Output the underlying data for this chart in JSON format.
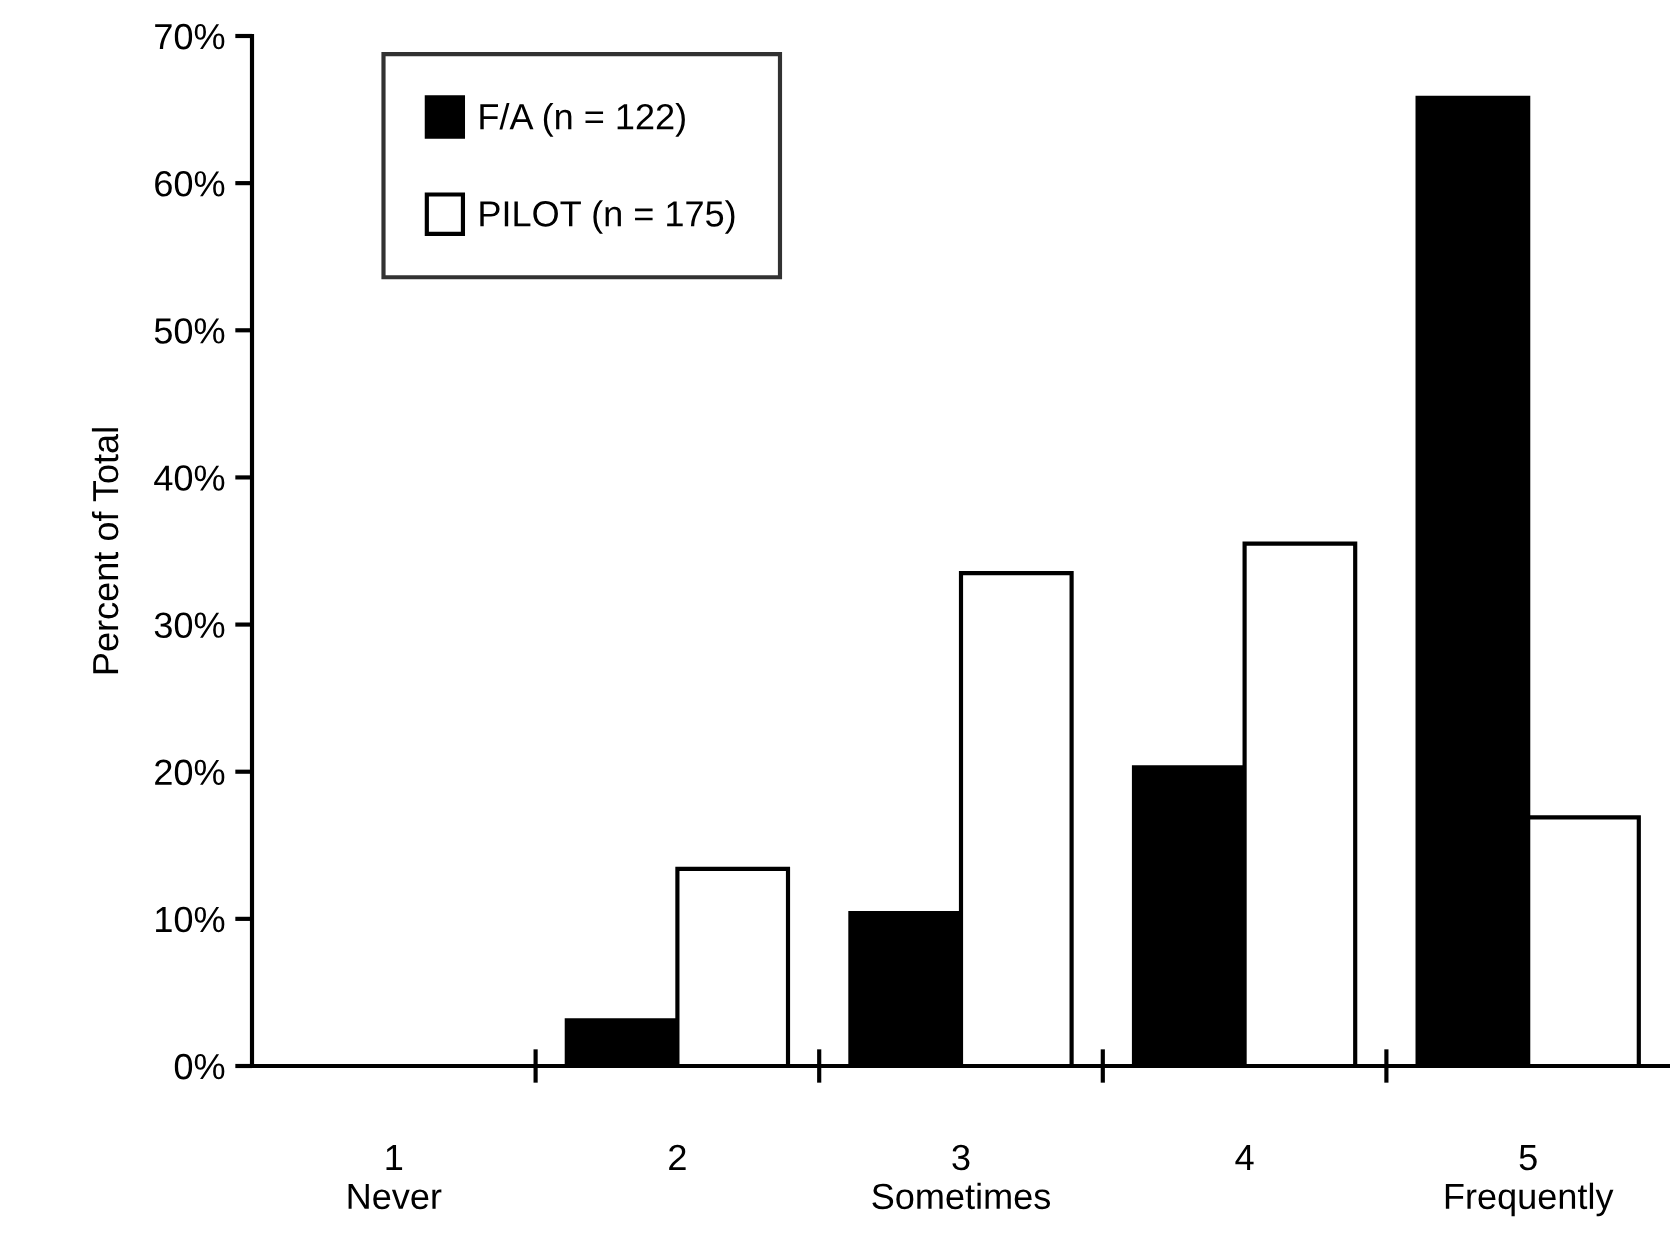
{
  "chart_data": {
    "type": "bar",
    "ylabel": "Percent of Total",
    "categories": [
      "1\nNever",
      "2",
      "3\nSometimes",
      "4",
      "5\nFrequently"
    ],
    "series": [
      {
        "name": "F/A (n = 122)",
        "color": "#000000",
        "values": [
          0,
          3.1,
          10.4,
          20.3,
          65.8
        ]
      },
      {
        "name": "PILOT (n = 175)",
        "color": "#ffffff",
        "values": [
          0,
          13.4,
          33.5,
          35.5,
          16.9
        ]
      }
    ],
    "ylim": [
      0,
      70
    ],
    "yticks": [
      {
        "value": 0,
        "label": "0%"
      },
      {
        "value": 10,
        "label": "10%"
      },
      {
        "value": 20,
        "label": "20%"
      },
      {
        "value": 30,
        "label": "30%"
      },
      {
        "value": 40,
        "label": "40%"
      },
      {
        "value": 50,
        "label": "50%"
      },
      {
        "value": 60,
        "label": "60%"
      },
      {
        "value": 70,
        "label": "70%"
      }
    ],
    "grid": false,
    "legend": "top left"
  }
}
